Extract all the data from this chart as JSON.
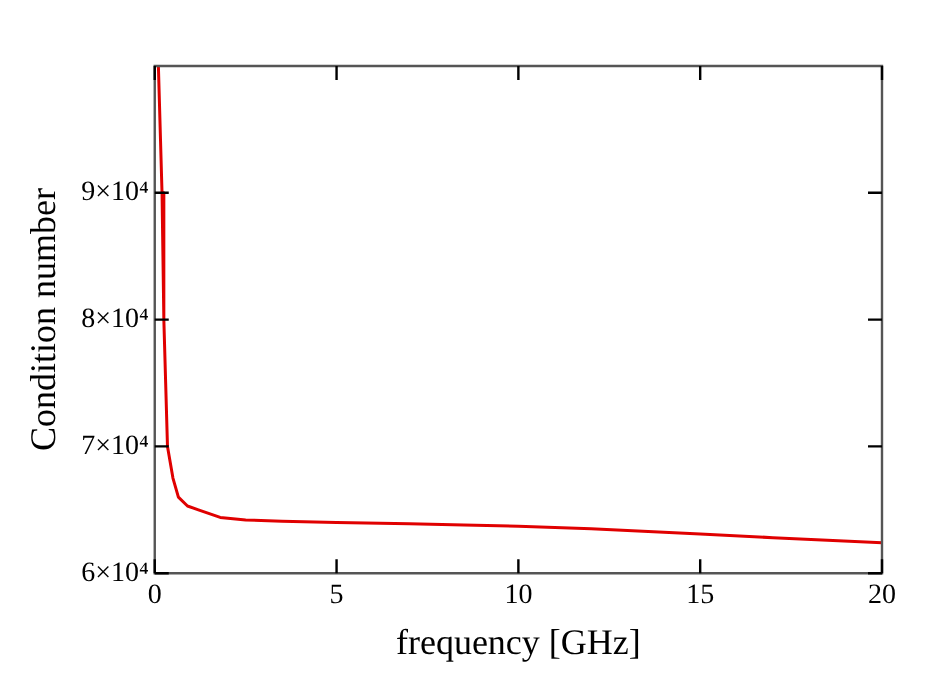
{
  "chart_data": {
    "type": "line",
    "xlabel": "frequency [GHz]",
    "ylabel": "Condition number",
    "series": [
      {
        "color": "#e00000",
        "x": [
          0.1,
          0.2,
          0.25,
          0.3,
          0.35,
          0.5,
          0.65,
          0.9,
          1.2,
          1.8,
          2.5,
          3.5,
          5,
          7,
          8.5,
          10,
          12,
          15,
          17,
          18.5,
          20
        ],
        "values": [
          100000,
          90000,
          80000,
          75000,
          70000,
          67500,
          66000,
          65300,
          65000,
          64400,
          64200,
          64100,
          64000,
          63900,
          63800,
          63700,
          63500,
          63100,
          62800,
          62600,
          62400
        ]
      }
    ],
    "xlim": [
      0,
      20
    ],
    "xticks": [
      0,
      5,
      10,
      15,
      20
    ],
    "ylim": [
      60000,
      100000
    ],
    "yticks": [
      {
        "value": 60000,
        "label": "6×10⁴"
      },
      {
        "value": 70000,
        "label": "7×10⁴"
      },
      {
        "value": 80000,
        "label": "8×10⁴"
      },
      {
        "value": 90000,
        "label": "9×10⁴"
      }
    ],
    "grid": false,
    "legend": false,
    "marker": "none",
    "line_style": "solid"
  }
}
